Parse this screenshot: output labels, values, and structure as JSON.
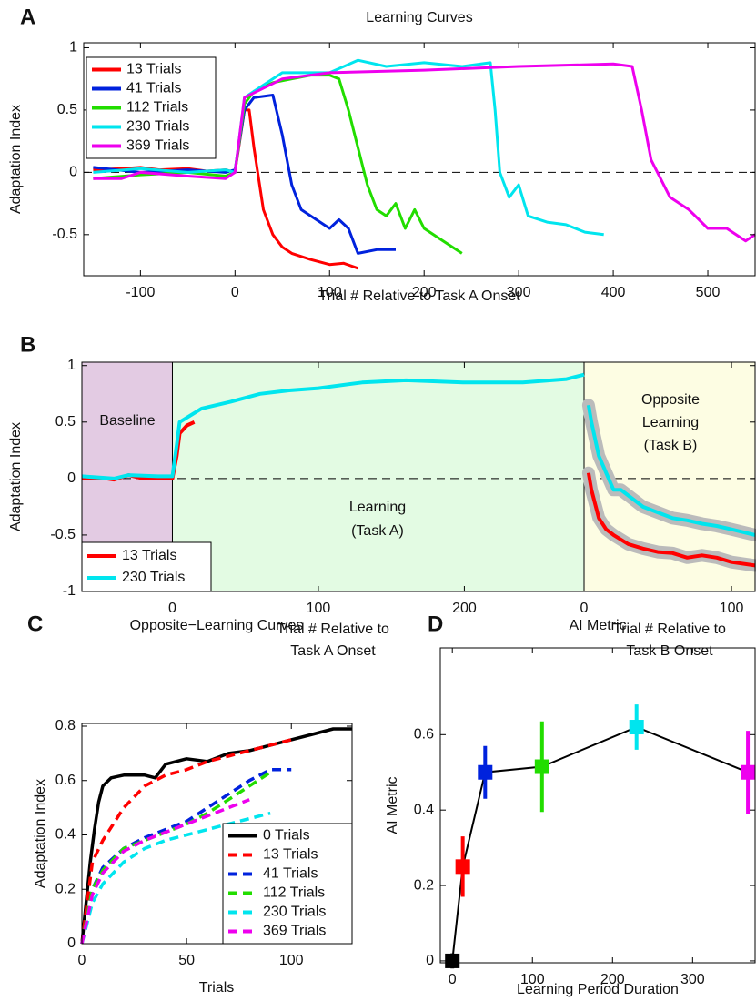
{
  "chart_data": [
    {
      "type": "line",
      "panel": "A",
      "title": "Learning Curves",
      "xlabel": "Trial # Relative to Task A Onset",
      "ylabel": "Adaptation Index",
      "xlim": [
        -160,
        550
      ],
      "ylim": [
        -0.83,
        1.04
      ],
      "xticks": [
        -100,
        0,
        100,
        200,
        300,
        400,
        500
      ],
      "yticks": [
        -0.5,
        0,
        0.5,
        1
      ],
      "hline": 0,
      "legend": "upper left",
      "series": [
        {
          "name": "13 Trials",
          "color": "#ff0000",
          "x": [
            -150,
            -120,
            -100,
            -80,
            -50,
            -30,
            -10,
            0,
            10,
            15,
            20,
            30,
            40,
            50,
            60,
            80,
            100,
            115,
            130
          ],
          "values": [
            0.02,
            0.03,
            0.04,
            0.02,
            0.03,
            0.01,
            0.02,
            0,
            0.5,
            0.5,
            0.2,
            -0.3,
            -0.5,
            -0.6,
            -0.65,
            -0.7,
            -0.74,
            -0.73,
            -0.77
          ]
        },
        {
          "name": "41 Trials",
          "color": "#0022dd",
          "x": [
            -150,
            -100,
            -50,
            -10,
            0,
            10,
            20,
            40,
            50,
            60,
            70,
            80,
            90,
            100,
            110,
            120,
            130,
            150,
            170
          ],
          "values": [
            0.04,
            0,
            0.02,
            0,
            0.02,
            0.5,
            0.6,
            0.62,
            0.3,
            -0.1,
            -0.3,
            -0.35,
            -0.4,
            -0.45,
            -0.38,
            -0.45,
            -0.65,
            -0.62,
            -0.62
          ]
        },
        {
          "name": "112 Trials",
          "color": "#22dd00",
          "x": [
            -150,
            -100,
            -50,
            -10,
            0,
            10,
            20,
            40,
            60,
            80,
            100,
            110,
            120,
            130,
            140,
            150,
            160,
            170,
            180,
            190,
            200,
            220,
            240
          ],
          "values": [
            -0.05,
            -0.02,
            0,
            -0.03,
            0,
            0.55,
            0.65,
            0.72,
            0.75,
            0.78,
            0.78,
            0.75,
            0.5,
            0.2,
            -0.1,
            -0.3,
            -0.35,
            -0.25,
            -0.45,
            -0.3,
            -0.45,
            -0.55,
            -0.65
          ]
        },
        {
          "name": "230 Trials",
          "color": "#00e5ee",
          "x": [
            -150,
            -100,
            -50,
            -10,
            0,
            10,
            30,
            50,
            70,
            100,
            130,
            160,
            200,
            240,
            270,
            275,
            280,
            290,
            300,
            310,
            330,
            350,
            370,
            390
          ],
          "values": [
            0,
            0.03,
            0,
            0.02,
            0,
            0.6,
            0.7,
            0.8,
            0.8,
            0.8,
            0.9,
            0.85,
            0.88,
            0.85,
            0.88,
            0.5,
            0,
            -0.2,
            -0.1,
            -0.35,
            -0.4,
            -0.42,
            -0.48,
            -0.5
          ]
        },
        {
          "name": "369 Trials",
          "color": "#ee00ee",
          "x": [
            -150,
            -120,
            -100,
            -50,
            -10,
            0,
            10,
            50,
            100,
            200,
            300,
            400,
            420,
            430,
            440,
            450,
            460,
            480,
            500,
            520,
            540,
            550
          ],
          "values": [
            -0.05,
            -0.05,
            0,
            -0.03,
            -0.05,
            0,
            0.6,
            0.75,
            0.8,
            0.82,
            0.85,
            0.87,
            0.85,
            0.5,
            0.1,
            -0.05,
            -0.2,
            -0.3,
            -0.45,
            -0.45,
            -0.55,
            -0.5
          ]
        }
      ]
    },
    {
      "type": "line",
      "panel": "B",
      "ylabel": "Adaptation Index",
      "ylim": [
        -1,
        1.03
      ],
      "yticks": [
        -1,
        -0.5,
        0,
        0.5,
        1
      ],
      "hline": 0,
      "legend": "lower left",
      "segments": [
        {
          "xlim": [
            -62,
            282
          ],
          "xticks": [
            0,
            100,
            200
          ],
          "xlabel": [
            "Trial # Relative to",
            "Task A Onset"
          ]
        },
        {
          "xlim": [
            0,
            116
          ],
          "xticks": [
            0,
            100
          ],
          "xlabel": [
            "Trial # Relative to",
            "Task B Onset"
          ]
        }
      ],
      "regions": [
        {
          "label": [
            "Baseline"
          ],
          "color": "#e3cbe3",
          "segment": 0,
          "from": -62,
          "to": 0
        },
        {
          "label": [
            "Learning",
            "(Task A)"
          ],
          "color": "#e3fbe3",
          "segment": 0,
          "from": 0,
          "to": 282
        },
        {
          "label": [
            "Opposite",
            "Learning",
            "(Task B)"
          ],
          "color": "#fdfde3",
          "segment": 1,
          "from": 0,
          "to": 116
        }
      ],
      "series": [
        {
          "name": "13 Trials",
          "color": "#ff0000",
          "segments": [
            {
              "x": [
                -62,
                -45,
                -40,
                -30,
                -20,
                -10,
                0,
                3,
                5,
                10,
                15
              ],
              "values": [
                0,
                0,
                -0.01,
                0.03,
                0,
                0,
                0,
                0.2,
                0.4,
                0.47,
                0.5
              ]
            },
            {
              "x": [
                3,
                5,
                10,
                15,
                20,
                30,
                40,
                50,
                60,
                70,
                80,
                90,
                100,
                116
              ],
              "values": [
                0.05,
                -0.1,
                -0.35,
                -0.45,
                -0.5,
                -0.58,
                -0.62,
                -0.65,
                -0.66,
                -0.7,
                -0.68,
                -0.7,
                -0.74,
                -0.77
              ]
            }
          ]
        },
        {
          "name": "230 Trials",
          "color": "#00e5ee",
          "segments": [
            {
              "x": [
                -62,
                -40,
                -30,
                -10,
                0,
                3,
                5,
                20,
                40,
                60,
                80,
                100,
                130,
                160,
                200,
                240,
                270,
                282
              ],
              "values": [
                0.02,
                0,
                0.03,
                0.02,
                0.02,
                0.3,
                0.5,
                0.62,
                0.68,
                0.75,
                0.78,
                0.8,
                0.85,
                0.87,
                0.85,
                0.85,
                0.88,
                0.92
              ]
            },
            {
              "x": [
                3,
                5,
                10,
                15,
                20,
                25,
                30,
                40,
                50,
                60,
                70,
                80,
                90,
                100,
                116
              ],
              "values": [
                0.65,
                0.5,
                0.2,
                0.05,
                -0.1,
                -0.1,
                -0.15,
                -0.25,
                -0.3,
                -0.35,
                -0.37,
                -0.4,
                -0.42,
                -0.45,
                -0.5
              ]
            }
          ]
        }
      ]
    },
    {
      "type": "line",
      "panel": "C",
      "title": "Opposite−Learning Curves",
      "xlabel": "Trials",
      "ylabel": "Adaptation Index",
      "xlim": [
        0,
        129
      ],
      "ylim": [
        0,
        0.81
      ],
      "xticks": [
        0,
        50,
        100
      ],
      "yticks": [
        0,
        0.2,
        0.4,
        0.6,
        0.8
      ],
      "legend": "lower right",
      "series": [
        {
          "name": "0 Trials",
          "color": "#000000",
          "linestyle": "solid",
          "x": [
            0,
            2,
            4,
            6,
            8,
            10,
            14,
            20,
            30,
            35,
            40,
            45,
            50,
            60,
            70,
            80,
            90,
            100,
            110,
            120,
            129
          ],
          "values": [
            0,
            0.15,
            0.3,
            0.42,
            0.52,
            0.58,
            0.61,
            0.62,
            0.62,
            0.61,
            0.66,
            0.67,
            0.68,
            0.67,
            0.7,
            0.71,
            0.73,
            0.75,
            0.77,
            0.79,
            0.79
          ]
        },
        {
          "name": "13 Trials",
          "color": "#ff0000",
          "linestyle": "dashed",
          "x": [
            0,
            5,
            10,
            20,
            30,
            40,
            50,
            60,
            70,
            80,
            90,
            100
          ],
          "values": [
            0,
            0.3,
            0.38,
            0.5,
            0.58,
            0.62,
            0.64,
            0.67,
            0.69,
            0.71,
            0.73,
            0.75
          ]
        },
        {
          "name": "41 Trials",
          "color": "#0022dd",
          "linestyle": "dashed",
          "x": [
            0,
            5,
            10,
            20,
            30,
            40,
            50,
            60,
            70,
            80,
            90,
            100
          ],
          "values": [
            0,
            0.2,
            0.28,
            0.35,
            0.39,
            0.42,
            0.45,
            0.5,
            0.55,
            0.6,
            0.64,
            0.64
          ]
        },
        {
          "name": "112 Trials",
          "color": "#22dd00",
          "linestyle": "dashed",
          "x": [
            0,
            5,
            10,
            20,
            30,
            40,
            50,
            60,
            70,
            80,
            90
          ],
          "values": [
            0,
            0.2,
            0.27,
            0.35,
            0.38,
            0.41,
            0.44,
            0.48,
            0.53,
            0.58,
            0.63
          ]
        },
        {
          "name": "230 Trials",
          "color": "#00e5ee",
          "linestyle": "dashed",
          "x": [
            0,
            5,
            10,
            20,
            30,
            40,
            50,
            60,
            70,
            80,
            90
          ],
          "values": [
            0,
            0.15,
            0.22,
            0.3,
            0.35,
            0.38,
            0.4,
            0.42,
            0.44,
            0.46,
            0.48
          ]
        },
        {
          "name": "369 Trials",
          "color": "#ee00ee",
          "linestyle": "dashed",
          "x": [
            0,
            5,
            10,
            20,
            30,
            40,
            50,
            60,
            70,
            80
          ],
          "values": [
            0,
            0.18,
            0.26,
            0.34,
            0.38,
            0.41,
            0.44,
            0.47,
            0.5,
            0.53
          ]
        }
      ]
    },
    {
      "type": "errorbar",
      "panel": "D",
      "title": "AI Metric",
      "xlabel": "Learning Period Duration",
      "ylabel": "AI Metric",
      "xlim": [
        -15,
        378
      ],
      "ylim": [
        -0.005,
        0.83
      ],
      "xticks": [
        0,
        100,
        200,
        300
      ],
      "yticks": [
        0,
        0.2,
        0.4,
        0.6
      ],
      "line_color": "#000000",
      "x": [
        0,
        13,
        41,
        112,
        230,
        369
      ],
      "values": [
        0,
        0.25,
        0.5,
        0.515,
        0.62,
        0.5
      ],
      "errors": [
        0.02,
        0.08,
        0.07,
        0.12,
        0.06,
        0.11
      ],
      "colors": [
        "#000000",
        "#ff0000",
        "#0022dd",
        "#22dd00",
        "#00e5ee",
        "#ee00ee"
      ]
    }
  ]
}
